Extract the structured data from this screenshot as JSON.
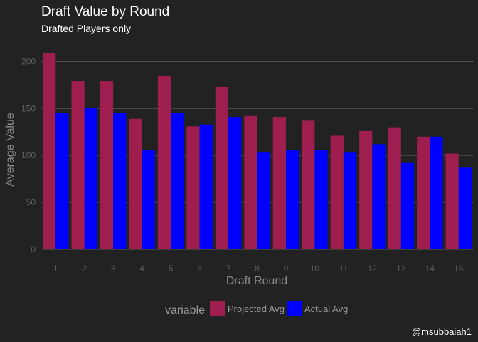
{
  "chart_data": {
    "type": "bar",
    "title": "Draft Value by Round",
    "subtitle": "Drafted Players only",
    "xlabel": "Draft Round",
    "ylabel": "Average Value",
    "categories": [
      "1",
      "2",
      "3",
      "4",
      "5",
      "6",
      "7",
      "8",
      "9",
      "10",
      "11",
      "12",
      "13",
      "14",
      "15"
    ],
    "series": [
      {
        "name": "Projected Avg",
        "color": "#9e1f4f",
        "values": [
          209,
          179,
          179,
          139,
          185,
          131,
          173,
          142,
          141,
          137,
          121,
          126,
          130,
          120,
          102
        ]
      },
      {
        "name": "Actual Avg",
        "color": "#0000ff",
        "values": [
          145,
          151,
          145,
          106,
          145,
          133,
          141,
          103,
          106,
          106,
          103,
          112,
          92,
          120,
          87
        ]
      }
    ],
    "ylim": [
      0,
      220
    ],
    "yticks": [
      0,
      50,
      100,
      150,
      200
    ],
    "grid": "horizontal",
    "legend": {
      "title": "variable",
      "position": "bottom"
    },
    "caption": "@msubbaiah1"
  },
  "colors": {
    "background": "#222222",
    "gridline": "#555555"
  }
}
